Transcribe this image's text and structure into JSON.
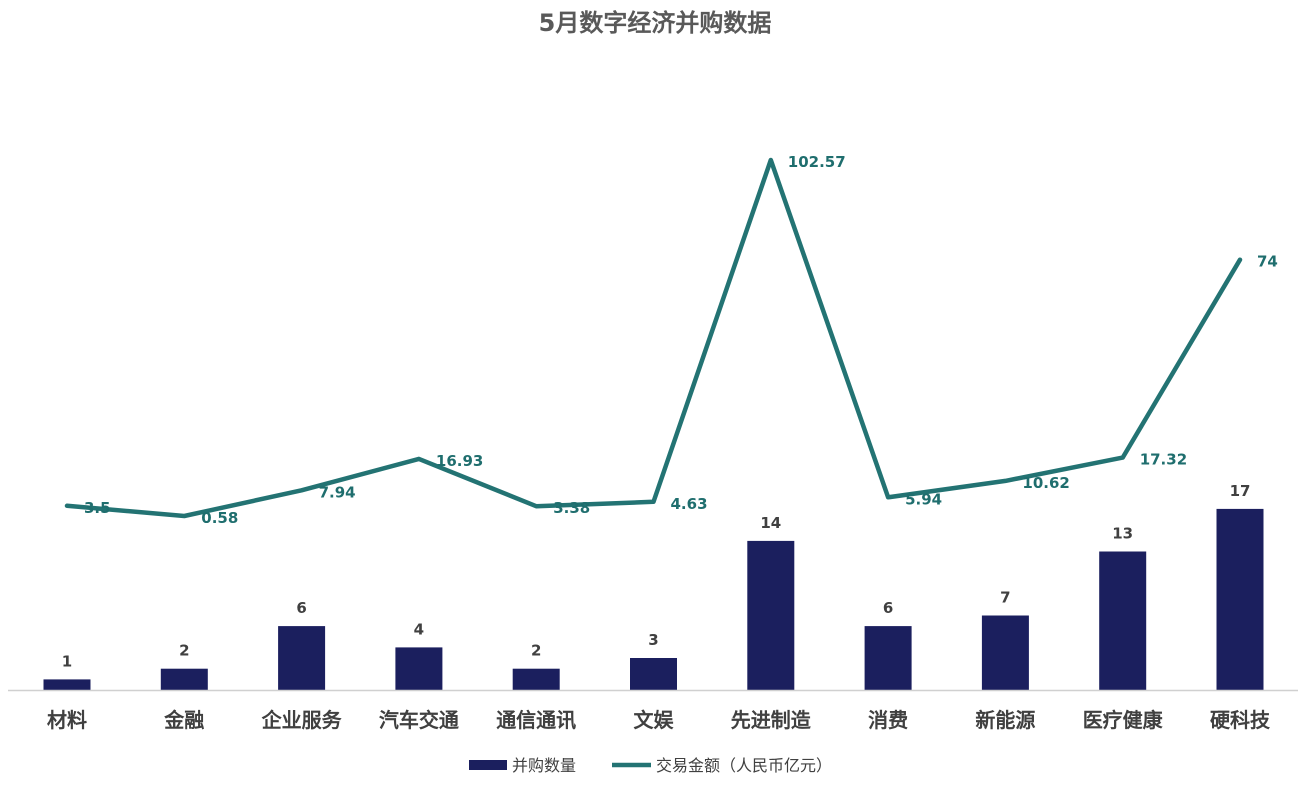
{
  "chart_data": {
    "type": "bar",
    "title": "5月数字经济并购数据",
    "categories": [
      "材料",
      "金融",
      "企业服务",
      "汽车交通",
      "通信通讯",
      "文娱",
      "先进制造",
      "消费",
      "新能源",
      "医疗健康",
      "硬科技"
    ],
    "series": [
      {
        "name": "并购数量",
        "type": "bar",
        "color": "#1b1f5e",
        "values": [
          1,
          2,
          6,
          4,
          2,
          3,
          14,
          6,
          7,
          13,
          17
        ],
        "labels": [
          "1",
          "2",
          "6",
          "4",
          "2",
          "3",
          "14",
          "6",
          "7",
          "13",
          "17"
        ]
      },
      {
        "name": "交易金额（人民币亿元）",
        "type": "line",
        "color": "#237373",
        "values": [
          3.5,
          0.58,
          7.94,
          16.93,
          3.38,
          4.63,
          102.57,
          5.94,
          10.62,
          17.32,
          74
        ],
        "labels": [
          "3.5",
          "0.58",
          "7.94",
          "16.93",
          "3.38",
          "4.63",
          "102.57",
          "5.94",
          "10.62",
          "17.32",
          "74"
        ]
      }
    ],
    "legend_position": "bottom",
    "grid": false
  }
}
